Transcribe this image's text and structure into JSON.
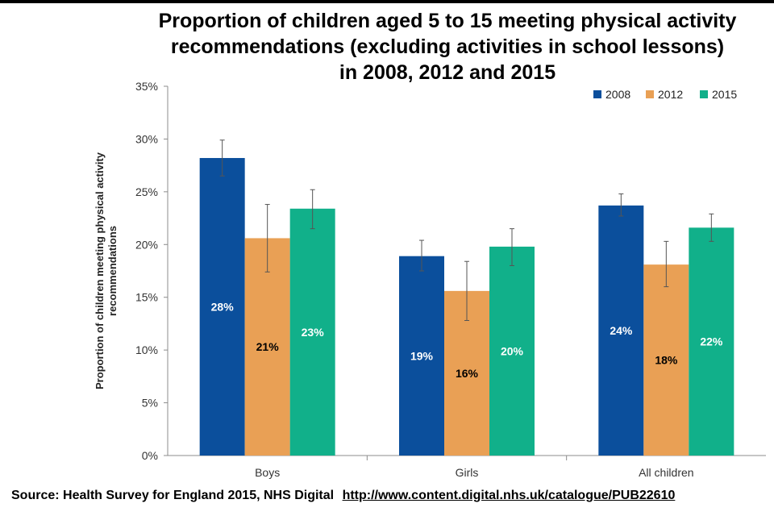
{
  "chart_data": {
    "type": "bar",
    "title_lines": [
      "Proportion of children aged 5 to 15 meeting physical activity",
      "recommendations (excluding activities in school lessons)",
      "in 2008, 2012 and 2015"
    ],
    "ylabel_lines": [
      "Proportion of children meeting physical activity",
      "recommendations"
    ],
    "xlabel": "",
    "categories": [
      "Boys",
      "Girls",
      "All children"
    ],
    "ylim": [
      0,
      35
    ],
    "yticks": [
      0,
      5,
      10,
      15,
      20,
      25,
      30,
      35
    ],
    "ytick_labels": [
      "0%",
      "5%",
      "10%",
      "15%",
      "20%",
      "25%",
      "30%",
      "35%"
    ],
    "grid": false,
    "legend_position": "top-right",
    "series": [
      {
        "name": "2008",
        "color": "#0b4f9c",
        "label_color": "#ffffff",
        "values": [
          28.2,
          18.9,
          23.7
        ],
        "labels": [
          "28%",
          "19%",
          "24%"
        ],
        "error_low": [
          26.5,
          17.5,
          22.7
        ],
        "error_high": [
          29.9,
          20.4,
          24.8
        ]
      },
      {
        "name": "2012",
        "color": "#e9a055",
        "label_color": "#000000",
        "values": [
          20.6,
          15.6,
          18.1
        ],
        "labels": [
          "21%",
          "16%",
          "18%"
        ],
        "error_low": [
          17.4,
          12.8,
          16.0
        ],
        "error_high": [
          23.8,
          18.4,
          20.3
        ]
      },
      {
        "name": "2015",
        "color": "#11b08a",
        "label_color": "#ffffff",
        "values": [
          23.4,
          19.8,
          21.6
        ],
        "labels": [
          "23%",
          "20%",
          "22%"
        ],
        "error_low": [
          21.5,
          18.0,
          20.3
        ],
        "error_high": [
          25.2,
          21.5,
          22.9
        ]
      }
    ]
  },
  "source": {
    "text": "Source: Health Survey for England 2015, NHS Digital",
    "url": "http://www.content.digital.nhs.uk/catalogue/PUB22610"
  }
}
